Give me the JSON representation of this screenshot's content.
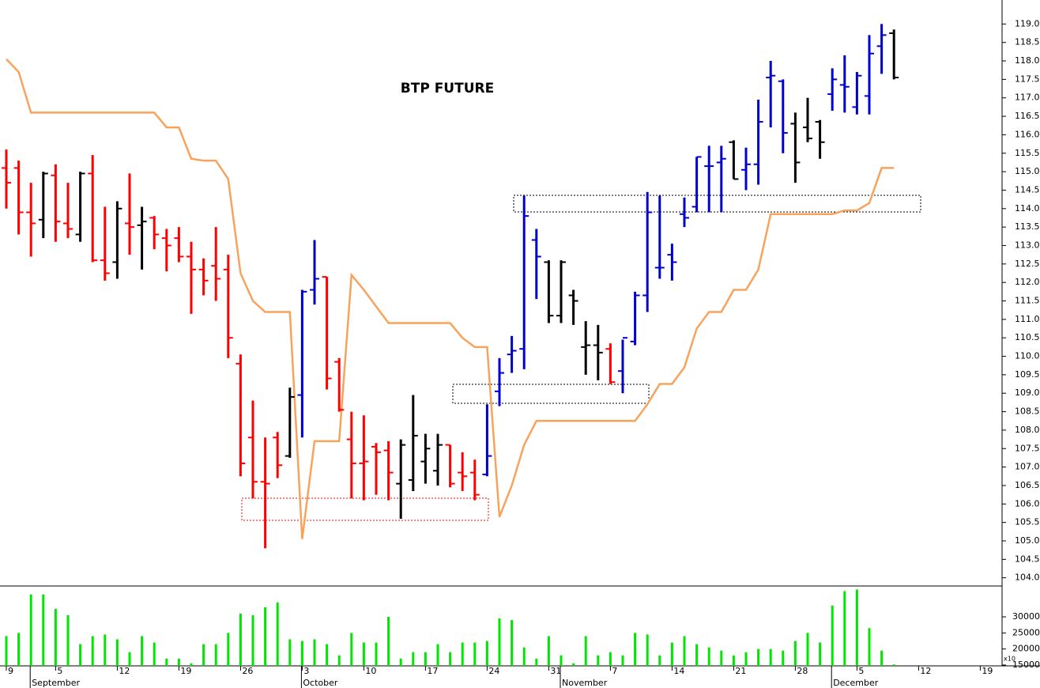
{
  "chart_data": [
    {
      "type": "ohlc",
      "title": "BTP FUTURE",
      "categories": [
        "9",
        null,
        null,
        null,
        "5",
        null,
        null,
        null,
        null,
        "12",
        null,
        null,
        null,
        null,
        "19",
        null,
        null,
        null,
        null,
        "26",
        null,
        null,
        null,
        null,
        "3",
        null,
        null,
        null,
        null,
        "10",
        null,
        null,
        null,
        null,
        "17",
        null,
        null,
        null,
        null,
        "24",
        null,
        null,
        null,
        null,
        "31",
        null,
        null,
        null,
        null,
        "7",
        null,
        null,
        null,
        null,
        "14",
        null,
        null,
        null,
        null,
        "21",
        null,
        null,
        null,
        null,
        "28",
        null,
        null,
        null,
        null,
        "5",
        null,
        null,
        null,
        null,
        "12",
        null,
        null,
        null,
        null,
        "19",
        null
      ],
      "months": [
        null,
        null,
        "September",
        null,
        null,
        null,
        null,
        null,
        null,
        null,
        null,
        null,
        null,
        null,
        null,
        null,
        null,
        null,
        null,
        null,
        null,
        null,
        null,
        null,
        "October",
        null,
        null,
        null,
        null,
        null,
        null,
        null,
        null,
        null,
        null,
        null,
        null,
        null,
        null,
        null,
        null,
        null,
        null,
        null,
        null,
        "November",
        null,
        null,
        null,
        null,
        null,
        null,
        null,
        null,
        null,
        null,
        null,
        null,
        null,
        null,
        null,
        null,
        null,
        null,
        null,
        null,
        null,
        "December",
        null,
        null,
        null,
        null,
        null,
        null,
        null,
        null,
        null,
        null,
        null,
        null,
        null
      ],
      "open": [
        115.1,
        115.1,
        113.9,
        113.7,
        114.9,
        113.6,
        113.3,
        114.95,
        112.6,
        112.55,
        113.6,
        113.55,
        113.75,
        113.2,
        113.2,
        112.7,
        112.35,
        112.45,
        112.35,
        109.8,
        107.8,
        106.6,
        107.8,
        107.3,
        108.95,
        111.8,
        112.15,
        109.85,
        107.75,
        107.1,
        107.55,
        107.45,
        106.55,
        106.65,
        107.15,
        106.9,
        107.6,
        106.85,
        106.85,
        106.8,
        109.05,
        110.05,
        110.2,
        113.15,
        112.55,
        111.1,
        111.65,
        110.25,
        110.3,
        110.2,
        109.6,
        110.4,
        111.65,
        112.4,
        112.75,
        113.85,
        114.05,
        115.15,
        115.25,
        115.8,
        115.05,
        115.2,
        117.55,
        117.45,
        116.3,
        116.2,
        116.35,
        117.1,
        117.35,
        116.75,
        117.05,
        118.4,
        118.75,
        null,
        null,
        null,
        null,
        null,
        null,
        null,
        null
      ],
      "high": [
        115.6,
        115.3,
        114.7,
        115.0,
        115.2,
        114.7,
        115.0,
        115.45,
        114.05,
        114.2,
        114.95,
        114.05,
        113.8,
        113.45,
        113.5,
        113.1,
        112.65,
        113.5,
        112.75,
        110.05,
        108.8,
        107.8,
        107.95,
        109.15,
        111.8,
        113.15,
        112.15,
        109.95,
        108.5,
        108.4,
        107.65,
        107.7,
        107.75,
        108.95,
        107.9,
        107.9,
        107.6,
        107.4,
        107.2,
        108.7,
        109.95,
        110.55,
        114.35,
        113.45,
        112.6,
        112.6,
        111.8,
        110.95,
        110.85,
        110.35,
        110.45,
        111.75,
        114.45,
        114.35,
        113.05,
        114.3,
        115.4,
        115.7,
        115.7,
        115.85,
        115.65,
        116.95,
        118.0,
        117.5,
        116.6,
        117.0,
        116.4,
        117.8,
        118.15,
        117.7,
        118.7,
        119.0,
        118.85,
        null,
        null,
        null,
        null,
        null,
        null,
        null,
        null
      ],
      "low": [
        114.0,
        113.3,
        112.7,
        113.2,
        113.1,
        113.2,
        113.1,
        112.55,
        112.05,
        112.1,
        112.75,
        112.35,
        112.9,
        112.3,
        112.55,
        111.15,
        111.65,
        111.5,
        109.95,
        106.75,
        106.15,
        104.8,
        106.7,
        107.25,
        107.8,
        111.4,
        109.1,
        108.5,
        106.15,
        106.1,
        106.25,
        106.1,
        105.6,
        106.35,
        106.55,
        106.5,
        106.45,
        106.35,
        106.1,
        106.75,
        108.65,
        109.55,
        109.65,
        111.55,
        110.9,
        110.9,
        110.85,
        109.5,
        109.35,
        109.25,
        109.0,
        110.3,
        111.2,
        112.1,
        112.05,
        113.5,
        113.9,
        113.9,
        113.9,
        114.8,
        114.5,
        114.65,
        116.2,
        115.5,
        114.7,
        115.8,
        115.35,
        116.65,
        116.6,
        116.55,
        116.55,
        117.65,
        117.5,
        null,
        null,
        null,
        null,
        null,
        null,
        null,
        null
      ],
      "close": [
        114.7,
        113.9,
        113.6,
        114.95,
        113.65,
        113.45,
        114.95,
        112.6,
        112.25,
        114.0,
        113.5,
        113.65,
        113.3,
        113.0,
        112.7,
        112.35,
        112.05,
        112.1,
        110.5,
        107.1,
        106.6,
        106.55,
        107.05,
        108.9,
        111.75,
        112.1,
        109.4,
        108.55,
        107.1,
        107.15,
        107.4,
        106.85,
        107.6,
        107.85,
        107.5,
        107.6,
        106.55,
        106.75,
        106.25,
        107.3,
        109.55,
        110.15,
        113.8,
        112.7,
        111.1,
        112.55,
        111.5,
        110.3,
        110.1,
        109.3,
        110.5,
        111.65,
        113.9,
        112.4,
        112.55,
        113.75,
        115.4,
        115.15,
        115.35,
        114.8,
        115.2,
        116.35,
        117.6,
        116.05,
        115.25,
        115.9,
        115.8,
        117.5,
        117.3,
        117.6,
        118.2,
        118.7,
        117.55,
        null,
        null,
        null,
        null,
        null,
        null,
        null,
        null
      ],
      "colors": [
        "#ff0000",
        "#ff0000",
        "#ff0000",
        "#000000",
        "#ff0000",
        "#ff0000",
        "#000000",
        "#ff0000",
        "#ff0000",
        "#000000",
        "#ff0000",
        "#000000",
        "#ff0000",
        "#ff0000",
        "#ff0000",
        "#ff0000",
        "#ff0000",
        "#ff0000",
        "#ff0000",
        "#ff0000",
        "#ff0000",
        "#ff0000",
        "#ff0000",
        "#000000",
        "#0000cc",
        "#0000cc",
        "#ff0000",
        "#ff0000",
        "#ff0000",
        "#ff0000",
        "#ff0000",
        "#ff0000",
        "#000000",
        "#000000",
        "#000000",
        "#000000",
        "#ff0000",
        "#ff0000",
        "#ff0000",
        "#0000cc",
        "#0000cc",
        "#0000cc",
        "#0000cc",
        "#0000cc",
        "#000000",
        "#000000",
        "#000000",
        "#000000",
        "#000000",
        "#ff0000",
        "#0000cc",
        "#0000cc",
        "#0000cc",
        "#0000cc",
        "#0000cc",
        "#0000cc",
        "#0000cc",
        "#0000cc",
        "#0000cc",
        "#000000",
        "#0000cc",
        "#0000cc",
        "#0000cc",
        "#0000cc",
        "#000000",
        "#000000",
        "#000000",
        "#0000cc",
        "#0000cc",
        "#0000cc",
        "#0000cc",
        "#0000cc",
        "#000000",
        null,
        null,
        null,
        null,
        null,
        null,
        null,
        null
      ],
      "overlay": {
        "color": "#f7a35c",
        "values": [
          118.05,
          117.7,
          116.6,
          116.6,
          116.6,
          116.6,
          116.6,
          116.6,
          116.6,
          116.6,
          116.6,
          116.6,
          116.6,
          116.2,
          116.2,
          115.35,
          115.3,
          115.3,
          114.8,
          112.25,
          111.5,
          111.2,
          111.2,
          111.2,
          105.05,
          107.7,
          107.7,
          107.7,
          112.2,
          111.8,
          111.35,
          110.9,
          110.9,
          110.9,
          110.9,
          110.9,
          110.9,
          110.5,
          110.25,
          110.25,
          105.65,
          106.5,
          107.6,
          108.25,
          108.25,
          108.25,
          108.25,
          108.25,
          108.25,
          108.25,
          108.25,
          108.25,
          108.7,
          109.25,
          109.25,
          109.7,
          110.75,
          111.2,
          111.2,
          111.8,
          111.8,
          112.35,
          113.85,
          113.85,
          113.85,
          113.85,
          113.85,
          113.85,
          113.95,
          113.95,
          114.15,
          115.1,
          115.1,
          null,
          null,
          null,
          null,
          null,
          null,
          null,
          null
        ]
      },
      "ylim": [
        103.8,
        119.65
      ],
      "yticks": [
        {
          "value": 104,
          "label": "104.0"
        },
        {
          "value": 104.5,
          "label": "104.5"
        },
        {
          "value": 105,
          "label": "105.0"
        },
        {
          "value": 105.5,
          "label": "105.5"
        },
        {
          "value": 106,
          "label": "106.0"
        },
        {
          "value": 106.5,
          "label": "106.5"
        },
        {
          "value": 107,
          "label": "107.0"
        },
        {
          "value": 107.5,
          "label": "107.5"
        },
        {
          "value": 108,
          "label": "108.0"
        },
        {
          "value": 108.5,
          "label": "108.5"
        },
        {
          "value": 109,
          "label": "109.0"
        },
        {
          "value": 109.5,
          "label": "109.5"
        },
        {
          "value": 110,
          "label": "110.0"
        },
        {
          "value": 110.5,
          "label": "110.5"
        },
        {
          "value": 111,
          "label": "111.0"
        },
        {
          "value": 111.5,
          "label": "111.5"
        },
        {
          "value": 112,
          "label": "112.0"
        },
        {
          "value": 112.5,
          "label": "112.5"
        },
        {
          "value": 113,
          "label": "113.0"
        },
        {
          "value": 113.5,
          "label": "113.5"
        },
        {
          "value": 114,
          "label": "114.0"
        },
        {
          "value": 114.5,
          "label": "114.5"
        },
        {
          "value": 115,
          "label": "115.0"
        },
        {
          "value": 115.5,
          "label": "115.5"
        },
        {
          "value": 116,
          "label": "116.0"
        },
        {
          "value": 116.5,
          "label": "116.5"
        },
        {
          "value": 117,
          "label": "117.0"
        },
        {
          "value": 117.5,
          "label": "117.5"
        },
        {
          "value": 118,
          "label": "118.0"
        },
        {
          "value": 118.5,
          "label": "118.5"
        },
        {
          "value": 119,
          "label": "119.0"
        }
      ]
    },
    {
      "type": "bar",
      "multiplier": "x10",
      "color": "#00e600",
      "values": [
        24000,
        25000,
        37000,
        37000,
        32500,
        30500,
        21500,
        24000,
        24500,
        23000,
        19000,
        24000,
        22000,
        17000,
        17000,
        15500,
        21500,
        21500,
        25000,
        31000,
        30500,
        33000,
        34500,
        23000,
        22500,
        23000,
        21500,
        18000,
        25000,
        22000,
        22000,
        30000,
        17000,
        19000,
        19000,
        21500,
        19000,
        22000,
        22000,
        22500,
        29500,
        29000,
        20500,
        17000,
        24000,
        18000,
        15500,
        24000,
        18000,
        19000,
        18000,
        25000,
        24500,
        18000,
        22000,
        24000,
        21500,
        20500,
        19500,
        18000,
        19000,
        20000,
        20000,
        19500,
        22500,
        25000,
        22000,
        33500,
        38000,
        38500,
        26500,
        19500,
        15200,
        null,
        null,
        null,
        null,
        null,
        null,
        null,
        null
      ],
      "ylim": [
        14750,
        39600
      ],
      "yticks": [
        15000,
        20000,
        25000,
        30000
      ]
    }
  ]
}
